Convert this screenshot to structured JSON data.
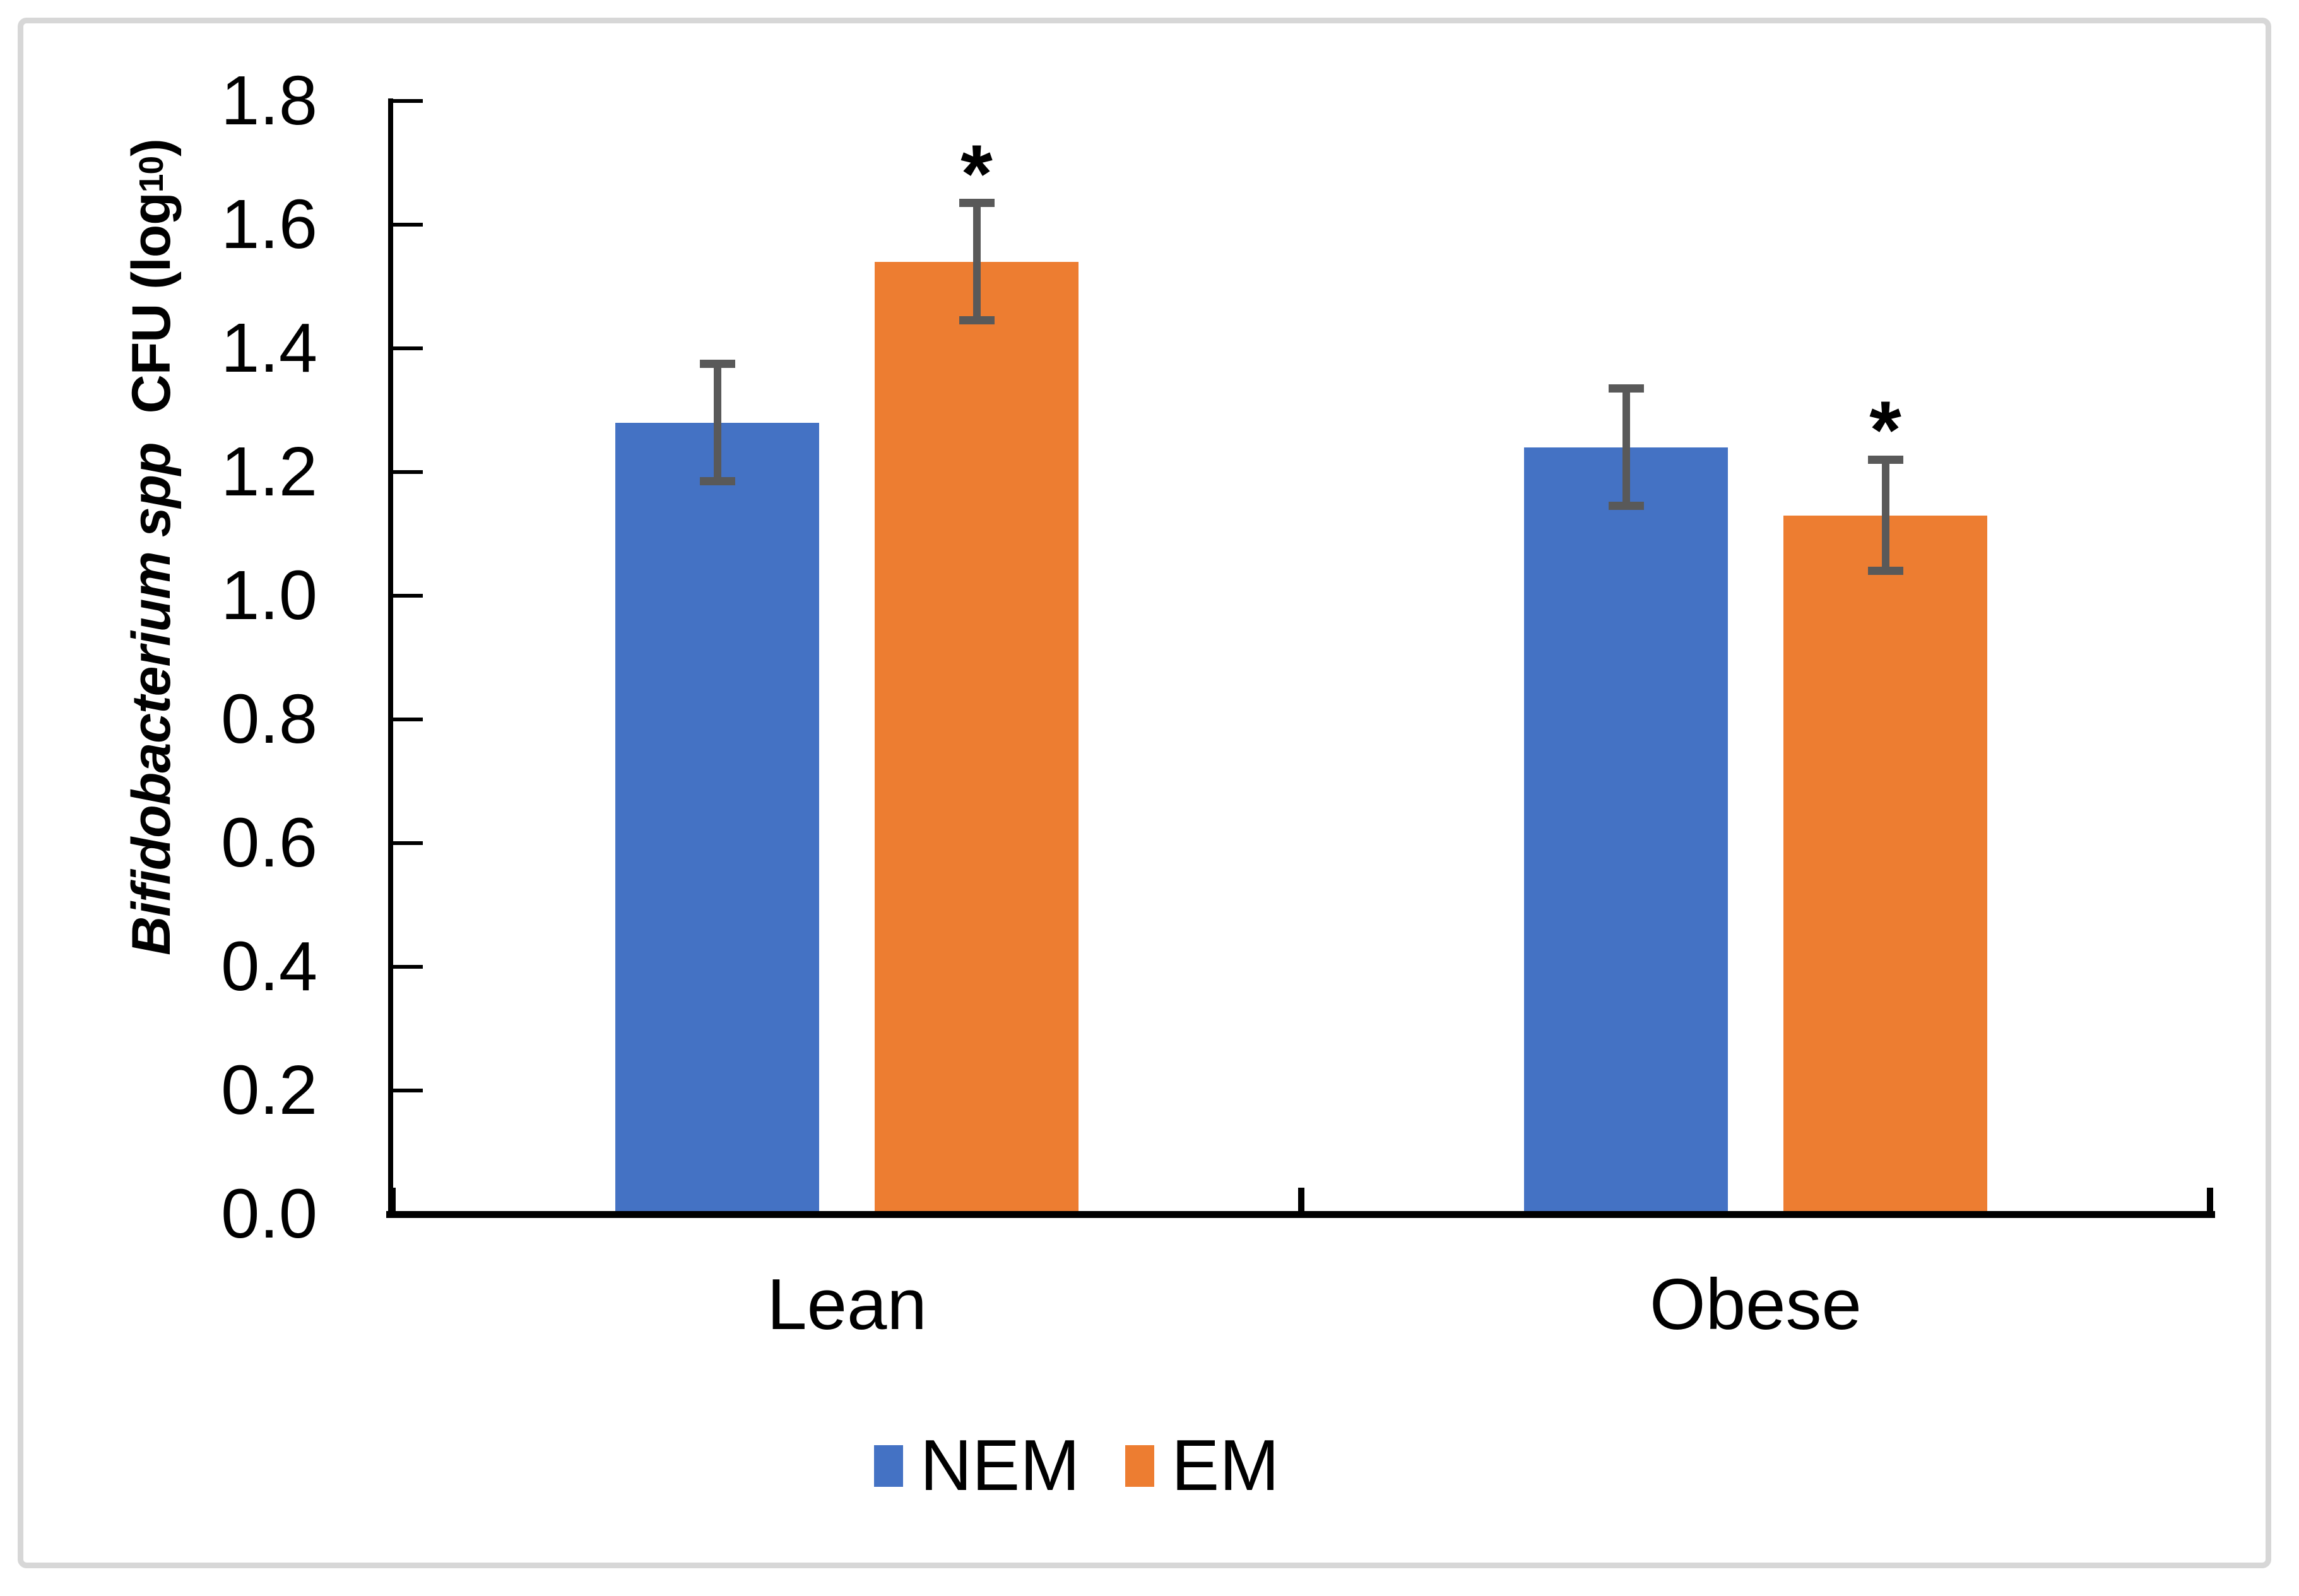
{
  "figure": {
    "background": "#ffffff",
    "border_color": "#d7d7d7"
  },
  "chart_data": {
    "type": "bar",
    "title": "",
    "categories": [
      "Lean",
      "Obese"
    ],
    "series": [
      {
        "name": "NEM",
        "color": "#4472C4",
        "values": [
          1.28,
          1.24
        ],
        "errors": [
          0.095,
          0.095
        ],
        "significant": [
          false,
          false
        ]
      },
      {
        "name": "EM",
        "color": "#ED7D31",
        "values": [
          1.54,
          1.13
        ],
        "errors": [
          0.095,
          0.09
        ],
        "significant": [
          true,
          true
        ]
      }
    ],
    "ylabel": {
      "italic": "Bifidobacterium spp",
      "normal": "CFU (log",
      "subscript": "10",
      "close": ")"
    },
    "ylim": [
      0,
      1.8
    ],
    "ytick_step": 0.2,
    "ytick_labels": [
      "0.0",
      "0.2",
      "0.4",
      "0.6",
      "0.8",
      "1.0",
      "1.2",
      "1.4",
      "1.6",
      "1.8"
    ],
    "grid": false,
    "legend_position": "bottom",
    "significance_marker": "*",
    "error_bar_color": "#595959",
    "axis_color": "#000000",
    "text_color": "#000000"
  },
  "legend": {
    "items": [
      {
        "label": "NEM",
        "color": "#4472C4"
      },
      {
        "label": "EM",
        "color": "#ED7D31"
      }
    ]
  }
}
